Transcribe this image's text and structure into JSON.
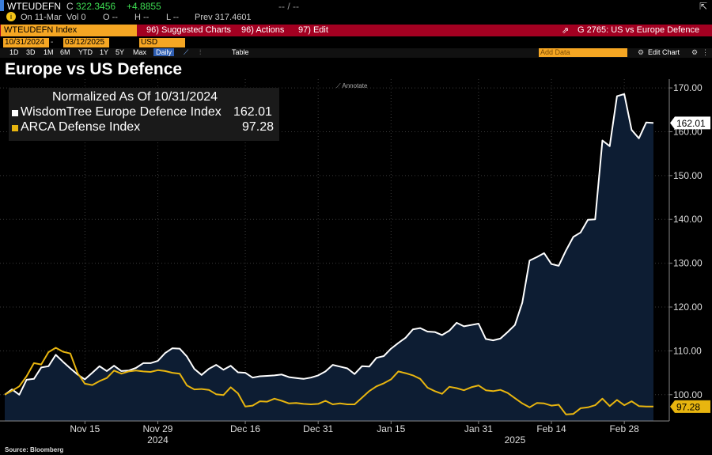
{
  "header": {
    "ticker": "WTEUDEFN",
    "price_label": "C",
    "price": "322.3456",
    "change": "+4.8855",
    "bid_ask": "-- / --",
    "date_info": "On 11-Mar",
    "vol": "Vol 0",
    "open": "O --",
    "high": "H --",
    "low": "L --",
    "prev": "Prev 317.4601"
  },
  "toolbar": {
    "security": "WTEUDEFN Index",
    "suggested": "96) Suggested Charts",
    "actions": "96) Actions",
    "edit": "97) Edit",
    "chart_id": "G 2765: US vs Europe Defence"
  },
  "controls": {
    "start_date": "10/31/2024",
    "end_date": "03/12/2025",
    "currency": "USD",
    "ranges": [
      "1D",
      "3D",
      "1M",
      "6M",
      "YTD",
      "1Y",
      "5Y",
      "Max"
    ],
    "frequency": "Daily",
    "table": "Table",
    "add_data": "Add Data",
    "edit_chart": "Edit Chart"
  },
  "annotate": "Annotate",
  "source": "Source: Bloomberg",
  "colors": {
    "white_series": "#ffffff",
    "yellow_series": "#e8b50f",
    "area_fill": "#0d1d33",
    "toolbar": "#a30021",
    "accent": "#f5a623"
  },
  "chart_data": {
    "type": "line",
    "title": "Europe vs US Defence",
    "legend_header": "Normalized As Of 10/31/2024",
    "xlabel": "",
    "ylabel": "",
    "ylim": [
      94,
      172
    ],
    "yticks": [
      100,
      110,
      120,
      130,
      140,
      150,
      160,
      170
    ],
    "ytick_labels": [
      "100.00",
      "110.00",
      "120.00",
      "130.00",
      "140.00",
      "150.00",
      "160.00",
      "170.00"
    ],
    "xticks": [
      {
        "i": 11,
        "label": "Nov 15"
      },
      {
        "i": 21,
        "label": "Nov 29"
      },
      {
        "i": 33,
        "label": "Dec 16"
      },
      {
        "i": 43,
        "label": "Dec 31"
      },
      {
        "i": 53,
        "label": "Jan 15"
      },
      {
        "i": 65,
        "label": "Jan 31"
      },
      {
        "i": 75,
        "label": "Feb 14"
      },
      {
        "i": 85,
        "label": "Feb 28"
      }
    ],
    "year_labels": [
      {
        "i": 21,
        "label": "2024"
      },
      {
        "i": 70,
        "label": "2025"
      }
    ],
    "series": [
      {
        "name": "WisdomTree Europe Defence Index",
        "last_label": "162.01",
        "values": [
          100.0,
          101.2,
          100.0,
          103.4,
          103.6,
          106.2,
          106.5,
          109.1,
          107.5,
          106.0,
          104.6,
          103.5,
          105.0,
          106.5,
          105.4,
          106.6,
          105.4,
          105.5,
          106.1,
          107.2,
          107.2,
          107.7,
          109.5,
          110.6,
          110.5,
          108.7,
          105.9,
          104.5,
          105.9,
          106.8,
          105.7,
          106.6,
          105.1,
          105.0,
          103.9,
          104.2,
          104.3,
          104.4,
          104.6,
          104.0,
          103.8,
          103.6,
          103.9,
          104.4,
          105.3,
          106.8,
          106.4,
          106.0,
          104.7,
          106.5,
          106.4,
          108.4,
          108.8,
          110.5,
          111.8,
          113.0,
          114.9,
          115.2,
          114.4,
          114.3,
          113.6,
          114.6,
          116.4,
          115.6,
          115.9,
          116.2,
          112.7,
          112.4,
          112.8,
          114.3,
          115.9,
          121.0,
          130.6,
          131.4,
          132.3,
          129.8,
          129.4,
          132.9,
          136.0,
          137.0,
          139.9,
          140.0,
          158.0,
          156.7,
          168.1,
          168.6,
          160.4,
          158.5,
          162.1,
          162.0
        ]
      },
      {
        "name": "ARCA Defense Index",
        "last_label": "97.28",
        "values": [
          100.0,
          100.9,
          101.9,
          104.2,
          107.2,
          106.9,
          109.7,
          110.7,
          109.8,
          109.4,
          104.9,
          102.5,
          102.2,
          103.1,
          103.8,
          105.5,
          104.8,
          105.3,
          105.5,
          105.3,
          105.2,
          105.6,
          105.4,
          105.0,
          104.8,
          102.1,
          101.2,
          101.3,
          101.1,
          100.1,
          99.9,
          101.7,
          100.3,
          97.3,
          97.5,
          98.5,
          98.4,
          99.1,
          98.6,
          98.0,
          98.1,
          97.9,
          97.8,
          97.9,
          98.6,
          97.8,
          98.0,
          97.8,
          97.8,
          99.3,
          100.8,
          101.9,
          102.6,
          103.5,
          105.3,
          104.9,
          104.4,
          103.6,
          101.6,
          100.8,
          100.2,
          101.8,
          101.5,
          101.0,
          101.7,
          102.1,
          101.0,
          100.8,
          101.1,
          100.4,
          99.2,
          98.0,
          97.1,
          98.1,
          98.0,
          97.5,
          97.7,
          95.5,
          95.6,
          96.9,
          97.1,
          97.6,
          99.1,
          97.4,
          98.8,
          97.6,
          98.5,
          97.4,
          97.3,
          97.28
        ]
      }
    ]
  }
}
